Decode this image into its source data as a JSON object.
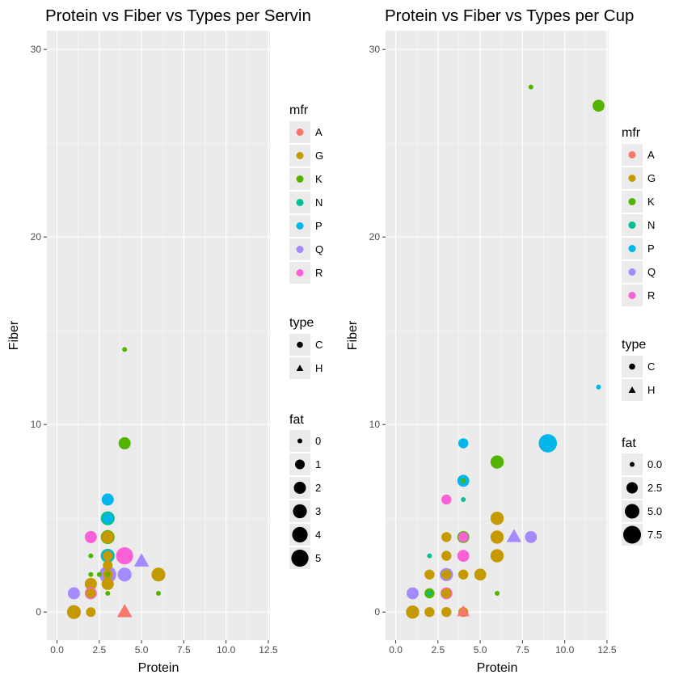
{
  "colors": {
    "panel_bg": "#EBEBEB",
    "grid_major": "#FFFFFF",
    "mfr": {
      "A": "#F8766D",
      "G": "#C49A00",
      "K": "#53B400",
      "N": "#00C094",
      "P": "#00B6EB",
      "Q": "#A58AFF",
      "R": "#FB61D7"
    }
  },
  "chart_data": [
    {
      "type": "scatter",
      "title": "Protein vs Fiber vs Types per Servin",
      "xlabel": "Protein",
      "ylabel": "Fiber",
      "xlim": [
        -0.6,
        12.6
      ],
      "ylim": [
        -1.5,
        31
      ],
      "xticks": [
        0,
        2.5,
        5,
        7.5,
        10,
        12.5
      ],
      "xtick_labels": [
        "0.0",
        "2.5",
        "5.0",
        "7.5",
        "10.0",
        "12.5"
      ],
      "yticks": [
        0,
        10,
        20,
        30
      ],
      "ytick_labels": [
        "0",
        "10",
        "20",
        "30"
      ],
      "grid": true,
      "legend": {
        "placement": "right",
        "mfr": {
          "title": "mfr",
          "items": [
            "A",
            "G",
            "K",
            "N",
            "P",
            "Q",
            "R"
          ]
        },
        "type": {
          "title": "type",
          "items": [
            {
              "label": "C",
              "shape": "circle"
            },
            {
              "label": "H",
              "shape": "triangle"
            }
          ]
        },
        "fat": {
          "title": "fat",
          "values": [
            0,
            1,
            2,
            3,
            4,
            5
          ],
          "labels": [
            "0",
            "1",
            "2",
            "3",
            "4",
            "5"
          ]
        }
      },
      "points": [
        {
          "x": 4,
          "y": 14,
          "mfr": "K",
          "type": "C",
          "fat": 0
        },
        {
          "x": 4,
          "y": 9,
          "mfr": "K",
          "type": "C",
          "fat": 2
        },
        {
          "x": 3,
          "y": 6,
          "mfr": "P",
          "type": "C",
          "fat": 2
        },
        {
          "x": 3,
          "y": 5,
          "mfr": "N",
          "type": "C",
          "fat": 3
        },
        {
          "x": 3,
          "y": 5,
          "mfr": "P",
          "type": "C",
          "fat": 1
        },
        {
          "x": 3,
          "y": 4,
          "mfr": "K",
          "type": "C",
          "fat": 3
        },
        {
          "x": 3,
          "y": 4,
          "mfr": "G",
          "type": "C",
          "fat": 2
        },
        {
          "x": 2,
          "y": 4,
          "mfr": "R",
          "type": "C",
          "fat": 2
        },
        {
          "x": 4,
          "y": 3,
          "mfr": "R",
          "type": "C",
          "fat": 5
        },
        {
          "x": 3,
          "y": 3,
          "mfr": "N",
          "type": "C",
          "fat": 3
        },
        {
          "x": 3,
          "y": 3,
          "mfr": "P",
          "type": "C",
          "fat": 2
        },
        {
          "x": 3,
          "y": 3,
          "mfr": "G",
          "type": "C",
          "fat": 1
        },
        {
          "x": 2,
          "y": 3,
          "mfr": "K",
          "type": "C",
          "fat": 0
        },
        {
          "x": 5,
          "y": 2.7,
          "mfr": "Q",
          "type": "H",
          "fat": 2
        },
        {
          "x": 3,
          "y": 2.5,
          "mfr": "G",
          "type": "C",
          "fat": 1
        },
        {
          "x": 6,
          "y": 2,
          "mfr": "G",
          "type": "C",
          "fat": 3
        },
        {
          "x": 4,
          "y": 2,
          "mfr": "Q",
          "type": "C",
          "fat": 3
        },
        {
          "x": 3,
          "y": 2,
          "mfr": "Q",
          "type": "C",
          "fat": 5
        },
        {
          "x": 3,
          "y": 2,
          "mfr": "G",
          "type": "C",
          "fat": 1
        },
        {
          "x": 3,
          "y": 2,
          "mfr": "K",
          "type": "C",
          "fat": 0
        },
        {
          "x": 2.5,
          "y": 2,
          "mfr": "K",
          "type": "C",
          "fat": 0
        },
        {
          "x": 2,
          "y": 2,
          "mfr": "K",
          "type": "C",
          "fat": 0
        },
        {
          "x": 3,
          "y": 1.5,
          "mfr": "G",
          "type": "C",
          "fat": 2
        },
        {
          "x": 2,
          "y": 1.5,
          "mfr": "G",
          "type": "C",
          "fat": 2
        },
        {
          "x": 1,
          "y": 1,
          "mfr": "Q",
          "type": "C",
          "fat": 2
        },
        {
          "x": 2,
          "y": 1,
          "mfr": "R",
          "type": "C",
          "fat": 2
        },
        {
          "x": 2,
          "y": 1,
          "mfr": "G",
          "type": "C",
          "fat": 1
        },
        {
          "x": 3,
          "y": 1,
          "mfr": "K",
          "type": "C",
          "fat": 0
        },
        {
          "x": 6,
          "y": 1,
          "mfr": "K",
          "type": "C",
          "fat": 0
        },
        {
          "x": 1,
          "y": 0,
          "mfr": "G",
          "type": "C",
          "fat": 3
        },
        {
          "x": 2,
          "y": 0,
          "mfr": "G",
          "type": "C",
          "fat": 1
        },
        {
          "x": 4,
          "y": 0,
          "mfr": "A",
          "type": "H",
          "fat": 2
        }
      ]
    },
    {
      "type": "scatter",
      "title": "Protein vs Fiber vs Types per Cup",
      "xlabel": "Protein",
      "ylabel": "Fiber",
      "xlim": [
        -0.6,
        12.6
      ],
      "ylim": [
        -1.5,
        31
      ],
      "xticks": [
        0,
        2.5,
        5,
        7.5,
        10,
        12.5
      ],
      "xtick_labels": [
        "0.0",
        "2.5",
        "5.0",
        "7.5",
        "10.0",
        "12.5"
      ],
      "yticks": [
        0,
        10,
        20,
        30
      ],
      "ytick_labels": [
        "0",
        "10",
        "20",
        "30"
      ],
      "grid": true,
      "legend": {
        "placement": "right",
        "mfr": {
          "title": "mfr",
          "items": [
            "A",
            "G",
            "K",
            "N",
            "P",
            "Q",
            "R"
          ]
        },
        "type": {
          "title": "type",
          "items": [
            {
              "label": "C",
              "shape": "circle"
            },
            {
              "label": "H",
              "shape": "triangle"
            }
          ]
        },
        "fat": {
          "title": "fat",
          "values": [
            0,
            2.5,
            5,
            7.5
          ],
          "labels": [
            "0.0",
            "2.5",
            "5.0",
            "7.5"
          ]
        }
      },
      "points": [
        {
          "x": 8,
          "y": 28,
          "mfr": "K",
          "type": "C",
          "fat": 0
        },
        {
          "x": 12,
          "y": 27,
          "mfr": "K",
          "type": "C",
          "fat": 3
        },
        {
          "x": 12,
          "y": 12,
          "mfr": "P",
          "type": "C",
          "fat": 0
        },
        {
          "x": 4,
          "y": 9,
          "mfr": "P",
          "type": "C",
          "fat": 2
        },
        {
          "x": 9,
          "y": 9,
          "mfr": "P",
          "type": "C",
          "fat": 8
        },
        {
          "x": 6,
          "y": 8,
          "mfr": "K",
          "type": "C",
          "fat": 4
        },
        {
          "x": 4,
          "y": 7,
          "mfr": "P",
          "type": "C",
          "fat": 3
        },
        {
          "x": 4,
          "y": 7,
          "mfr": "K",
          "type": "C",
          "fat": 0
        },
        {
          "x": 3,
          "y": 6,
          "mfr": "R",
          "type": "C",
          "fat": 2
        },
        {
          "x": 4,
          "y": 6,
          "mfr": "N",
          "type": "C",
          "fat": 0
        },
        {
          "x": 6,
          "y": 5,
          "mfr": "G",
          "type": "C",
          "fat": 4
        },
        {
          "x": 3,
          "y": 4,
          "mfr": "G",
          "type": "C",
          "fat": 2
        },
        {
          "x": 4,
          "y": 4,
          "mfr": "K",
          "type": "C",
          "fat": 3
        },
        {
          "x": 4,
          "y": 4,
          "mfr": "R",
          "type": "C",
          "fat": 2
        },
        {
          "x": 6,
          "y": 4,
          "mfr": "G",
          "type": "C",
          "fat": 4
        },
        {
          "x": 7,
          "y": 4,
          "mfr": "Q",
          "type": "H",
          "fat": 3
        },
        {
          "x": 8,
          "y": 4,
          "mfr": "Q",
          "type": "C",
          "fat": 3
        },
        {
          "x": 4,
          "y": 3,
          "mfr": "R",
          "type": "C",
          "fat": 3
        },
        {
          "x": 3,
          "y": 3,
          "mfr": "G",
          "type": "C",
          "fat": 2
        },
        {
          "x": 6,
          "y": 3,
          "mfr": "G",
          "type": "C",
          "fat": 4
        },
        {
          "x": 2,
          "y": 3,
          "mfr": "N",
          "type": "C",
          "fat": 0
        },
        {
          "x": 2,
          "y": 2,
          "mfr": "G",
          "type": "C",
          "fat": 2
        },
        {
          "x": 3,
          "y": 2,
          "mfr": "Q",
          "type": "C",
          "fat": 4
        },
        {
          "x": 3,
          "y": 2,
          "mfr": "G",
          "type": "C",
          "fat": 2
        },
        {
          "x": 4,
          "y": 2,
          "mfr": "G",
          "type": "C",
          "fat": 2
        },
        {
          "x": 5,
          "y": 2,
          "mfr": "G",
          "type": "C",
          "fat": 3
        },
        {
          "x": 1,
          "y": 1,
          "mfr": "Q",
          "type": "C",
          "fat": 3
        },
        {
          "x": 2,
          "y": 1,
          "mfr": "K",
          "type": "C",
          "fat": 2
        },
        {
          "x": 2,
          "y": 1,
          "mfr": "N",
          "type": "C",
          "fat": 0
        },
        {
          "x": 3,
          "y": 1,
          "mfr": "R",
          "type": "C",
          "fat": 3
        },
        {
          "x": 3,
          "y": 1,
          "mfr": "G",
          "type": "C",
          "fat": 2
        },
        {
          "x": 6,
          "y": 1,
          "mfr": "K",
          "type": "C",
          "fat": 0
        },
        {
          "x": 1,
          "y": 0,
          "mfr": "G",
          "type": "C",
          "fat": 4
        },
        {
          "x": 2,
          "y": 0,
          "mfr": "G",
          "type": "C",
          "fat": 2
        },
        {
          "x": 3,
          "y": 0,
          "mfr": "G",
          "type": "C",
          "fat": 2
        },
        {
          "x": 4,
          "y": 0,
          "mfr": "G",
          "type": "C",
          "fat": 2
        },
        {
          "x": 4,
          "y": 0,
          "mfr": "A",
          "type": "H",
          "fat": 2
        }
      ]
    }
  ]
}
